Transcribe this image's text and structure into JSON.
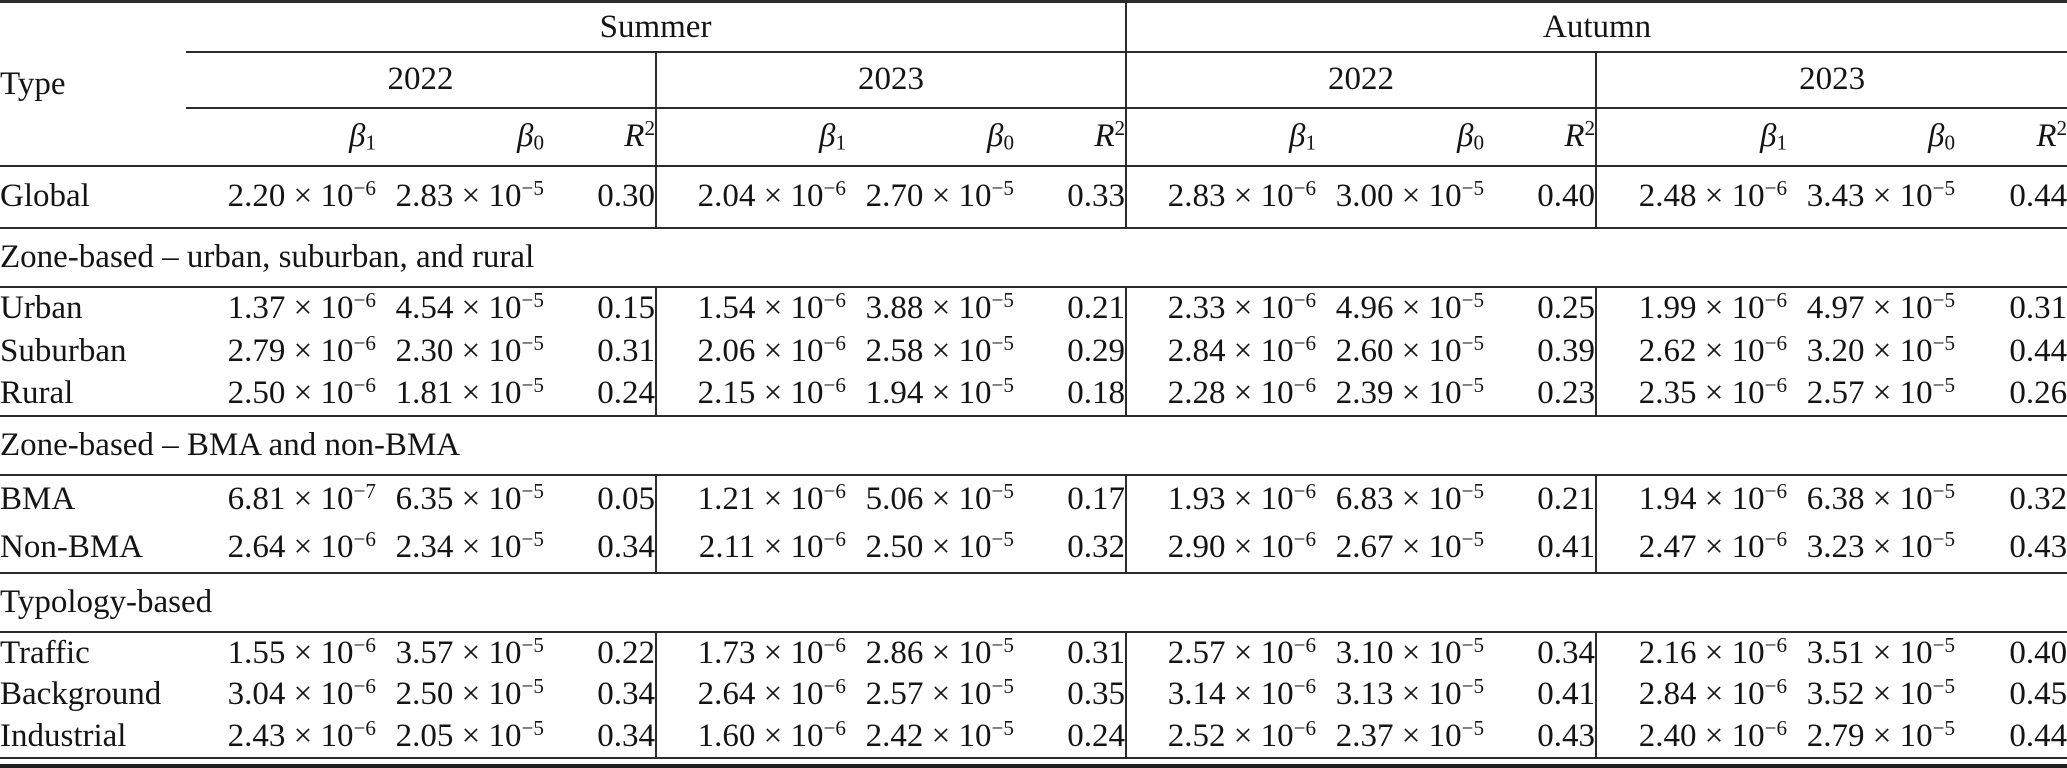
{
  "page": {
    "background": "#ffffff",
    "rule_color": "#2b2b2b",
    "text_color": "#141414"
  },
  "table": {
    "type_header": "Type",
    "season_headers": [
      "Summer",
      "Autumn"
    ],
    "year_headers": [
      "2022",
      "2023",
      "2022",
      "2023"
    ],
    "stat_headers": [
      {
        "sym": "β",
        "sub": "1"
      },
      {
        "sym": "β",
        "sub": "0"
      },
      {
        "sym": "R",
        "sup": "2"
      }
    ],
    "group_order": [
      "Summer 2022",
      "Summer 2023",
      "Autumn 2022",
      "Autumn 2023"
    ],
    "value_order_per_group": [
      "beta1",
      "beta0",
      "R2"
    ],
    "sections": [
      {
        "label": null,
        "rows": [
          {
            "type": "Global",
            "values": [
              "2.20e-6",
              "2.83e-5",
              "0.30",
              "2.04e-6",
              "2.70e-5",
              "0.33",
              "2.83e-6",
              "3.00e-5",
              "0.40",
              "2.48e-6",
              "3.43e-5",
              "0.44"
            ]
          }
        ]
      },
      {
        "label": "Zone-based – urban, suburban, and rural",
        "rows": [
          {
            "type": "Urban",
            "values": [
              "1.37e-6",
              "4.54e-5",
              "0.15",
              "1.54e-6",
              "3.88e-5",
              "0.21",
              "2.33e-6",
              "4.96e-5",
              "0.25",
              "1.99e-6",
              "4.97e-5",
              "0.31"
            ]
          },
          {
            "type": "Suburban",
            "values": [
              "2.79e-6",
              "2.30e-5",
              "0.31",
              "2.06e-6",
              "2.58e-5",
              "0.29",
              "2.84e-6",
              "2.60e-5",
              "0.39",
              "2.62e-6",
              "3.20e-5",
              "0.44"
            ]
          },
          {
            "type": "Rural",
            "values": [
              "2.50e-6",
              "1.81e-5",
              "0.24",
              "2.15e-6",
              "1.94e-5",
              "0.18",
              "2.28e-6",
              "2.39e-5",
              "0.23",
              "2.35e-6",
              "2.57e-5",
              "0.26"
            ]
          }
        ]
      },
      {
        "label": "Zone-based – BMA and non-BMA",
        "rows": [
          {
            "type": "BMA",
            "values": [
              "6.81e-7",
              "6.35e-5",
              "0.05",
              "1.21e-6",
              "5.06e-5",
              "0.17",
              "1.93e-6",
              "6.83e-5",
              "0.21",
              "1.94e-6",
              "6.38e-5",
              "0.32"
            ]
          },
          {
            "type": "Non-BMA",
            "values": [
              "2.64e-6",
              "2.34e-5",
              "0.34",
              "2.11e-6",
              "2.50e-5",
              "0.32",
              "2.90e-6",
              "2.67e-5",
              "0.41",
              "2.47e-6",
              "3.23e-5",
              "0.43"
            ]
          }
        ]
      },
      {
        "label": "Typology-based",
        "rows": [
          {
            "type": "Traffic",
            "values": [
              "1.55e-6",
              "3.57e-5",
              "0.22",
              "1.73e-6",
              "2.86e-5",
              "0.31",
              "2.57e-6",
              "3.10e-5",
              "0.34",
              "2.16e-6",
              "3.51e-5",
              "0.40"
            ]
          },
          {
            "type": "Background",
            "values": [
              "3.04e-6",
              "2.50e-5",
              "0.34",
              "2.64e-6",
              "2.57e-5",
              "0.35",
              "3.14e-6",
              "3.13e-5",
              "0.41",
              "2.84e-6",
              "3.52e-5",
              "0.45"
            ]
          },
          {
            "type": "Industrial",
            "values": [
              "2.43e-6",
              "2.05e-5",
              "0.34",
              "1.60e-6",
              "2.42e-5",
              "0.24",
              "2.52e-6",
              "2.37e-5",
              "0.43",
              "2.40e-6",
              "2.79e-5",
              "0.44"
            ]
          }
        ]
      }
    ]
  }
}
